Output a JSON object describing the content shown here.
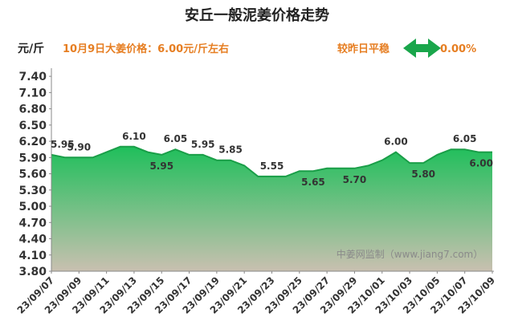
{
  "chart_data": {
    "type": "area",
    "title": "安丘一般泥姜价格走势",
    "unit_label": "元/斤",
    "info_text": "10月9日大姜价格：6.00元/斤左右",
    "compare_label": "较昨日平稳",
    "compare_value": "0.00%",
    "watermark": "中姜网监制（www.jiang7.com）",
    "ylim": [
      3.8,
      7.55
    ],
    "yticks": [
      "7.40",
      "7.10",
      "6.80",
      "6.50",
      "6.20",
      "5.90",
      "5.60",
      "5.30",
      "5.00",
      "4.70",
      "4.40",
      "4.10",
      "3.80"
    ],
    "x_tick_labels": [
      "23/09/07",
      "23/09/09",
      "23/09/11",
      "23/09/13",
      "23/09/15",
      "23/09/17",
      "23/09/19",
      "23/09/21",
      "23/09/23",
      "23/09/25",
      "23/09/27",
      "23/09/29",
      "23/10/01",
      "23/10/03",
      "23/10/05",
      "23/10/07",
      "23/10/09"
    ],
    "x": [
      "23/09/07",
      "23/09/08",
      "23/09/09",
      "23/09/10",
      "23/09/11",
      "23/09/12",
      "23/09/13",
      "23/09/14",
      "23/09/15",
      "23/09/16",
      "23/09/17",
      "23/09/18",
      "23/09/19",
      "23/09/20",
      "23/09/21",
      "23/09/22",
      "23/09/23",
      "23/09/24",
      "23/09/25",
      "23/09/26",
      "23/09/27",
      "23/09/28",
      "23/09/29",
      "23/09/30",
      "23/10/01",
      "23/10/02",
      "23/10/03",
      "23/10/04",
      "23/10/05",
      "23/10/06",
      "23/10/07",
      "23/10/08",
      "23/10/09"
    ],
    "values": [
      5.95,
      5.9,
      5.9,
      5.9,
      6.0,
      6.1,
      6.1,
      6.0,
      5.95,
      6.05,
      5.95,
      5.95,
      5.85,
      5.85,
      5.75,
      5.55,
      5.55,
      5.55,
      5.65,
      5.65,
      5.7,
      5.7,
      5.7,
      5.75,
      5.85,
      6.0,
      5.8,
      5.8,
      5.95,
      6.05,
      6.05,
      6.0,
      6.0
    ],
    "data_labels": [
      {
        "index": 0,
        "text": "5.95"
      },
      {
        "index": 2,
        "text": "5.90"
      },
      {
        "index": 6,
        "text": "6.10"
      },
      {
        "index": 8,
        "text": "5.95"
      },
      {
        "index": 9,
        "text": "6.05"
      },
      {
        "index": 11,
        "text": "5.95"
      },
      {
        "index": 13,
        "text": "5.85"
      },
      {
        "index": 16,
        "text": "5.55"
      },
      {
        "index": 19,
        "text": "5.65"
      },
      {
        "index": 22,
        "text": "5.70"
      },
      {
        "index": 25,
        "text": "6.00"
      },
      {
        "index": 27,
        "text": "5.80"
      },
      {
        "index": 30,
        "text": "6.05"
      },
      {
        "index": 32,
        "text": "6.00"
      }
    ],
    "colors": {
      "area_top": "#1fbf5b",
      "area_bottom": "#c9c0b0",
      "line": "#1a9e48",
      "info": "#e67e22",
      "compare_arrow": "#1aa64b",
      "axis": "#888888"
    }
  }
}
